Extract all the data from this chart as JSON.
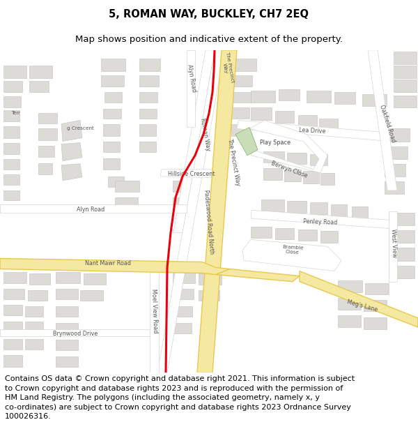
{
  "title": "5, ROMAN WAY, BUCKLEY, CH7 2EQ",
  "subtitle": "Map shows position and indicative extent of the property.",
  "footer": "Contains OS data © Crown copyright and database right 2021. This information is subject\nto Crown copyright and database rights 2023 and is reproduced with the permission of\nHM Land Registry. The polygons (including the associated geometry, namely x, y\nco-ordinates) are subject to Crown copyright and database rights 2023 Ordnance Survey\n100026316.",
  "title_fontsize": 10.5,
  "subtitle_fontsize": 9.5,
  "footer_fontsize": 8.0,
  "map_bg": "#f5f4f2",
  "building_fill": "#dddbd7",
  "building_edge": "#c5c2bc",
  "road_fill": "#ffffff",
  "road_edge": "#d8d5d0",
  "yellow_fill": "#f5e8a0",
  "yellow_edge": "#e8c850",
  "red_line": "#e8000a",
  "green_fill": "#c8ddb8",
  "green_edge": "#90b870",
  "fig_bg": "#ffffff",
  "label_color": "#555555",
  "label_fontsize": 5.8
}
